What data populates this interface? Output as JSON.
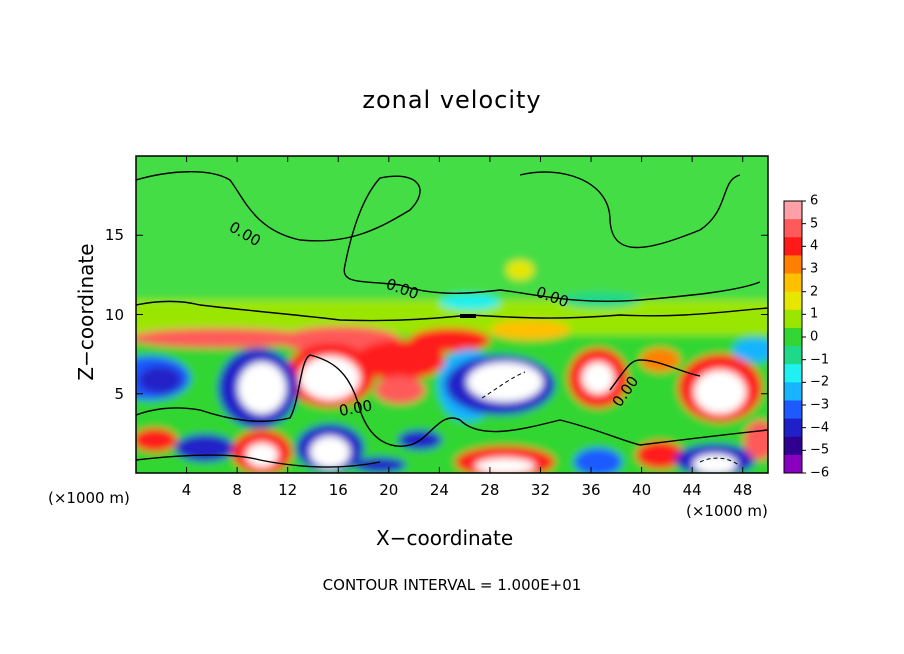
{
  "chart_data": {
    "type": "heatmap",
    "title": "zonal velocity",
    "xlabel": "X−coordinate",
    "ylabel": "Z−coordinate",
    "x_unit_left": "(×1000 m)",
    "x_unit_right": "(×1000 m)",
    "footnote": "CONTOUR INTERVAL = 1.000E+01",
    "xlim": [
      0,
      50
    ],
    "ylim": [
      0,
      20
    ],
    "x_ticks": [
      "4",
      "8",
      "12",
      "16",
      "20",
      "24",
      "28",
      "32",
      "36",
      "40",
      "44",
      "48"
    ],
    "y_ticks": [
      "5",
      "10",
      "15"
    ],
    "contour_labels": [
      "0.00",
      "0.00",
      "0.00",
      "0.00",
      "0.00"
    ],
    "colorbar": {
      "ticks": [
        "6",
        "5",
        "4",
        "3",
        "2",
        "1",
        "0",
        "−1",
        "−2",
        "−3",
        "−4",
        "−5",
        "−6"
      ],
      "range": [
        -6,
        6
      ],
      "colors": [
        "#ffa0a8",
        "#ff5a5a",
        "#ff1a1a",
        "#ff8000",
        "#ffc000",
        "#e6e600",
        "#9be600",
        "#33d633",
        "#1fd98a",
        "#1ff0f0",
        "#19b4ff",
        "#1f5aff",
        "#2020c8",
        "#300090",
        "#8a00c0"
      ]
    },
    "grid": false
  }
}
